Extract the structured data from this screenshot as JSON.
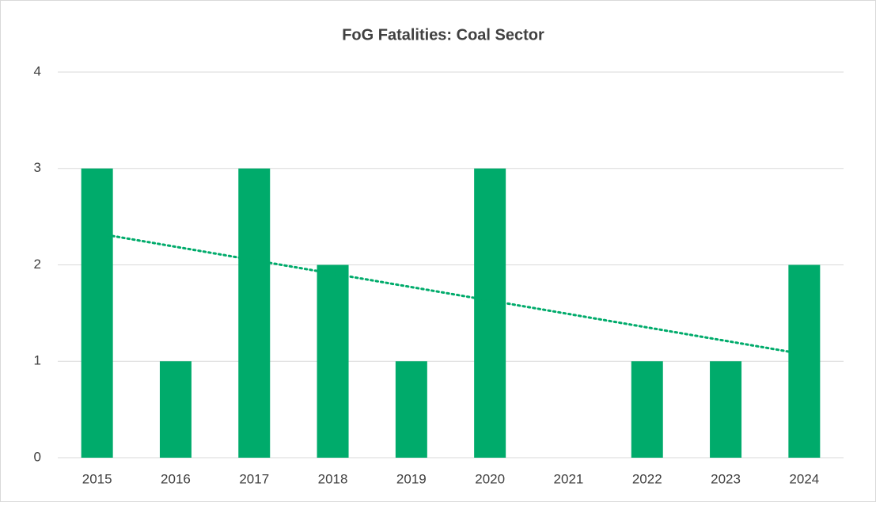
{
  "chart_data": {
    "type": "bar",
    "title": "FoG Fatalities: Coal Sector",
    "categories": [
      "2015",
      "2016",
      "2017",
      "2018",
      "2019",
      "2020",
      "2021",
      "2022",
      "2023",
      "2024"
    ],
    "values": [
      3,
      1,
      3,
      2,
      1,
      3,
      0,
      1,
      1,
      2
    ],
    "color": "#00ab6b",
    "ylim": [
      0,
      4
    ],
    "yticks": [
      0,
      1,
      2,
      3,
      4
    ],
    "grid": true,
    "trendline": "linear"
  }
}
